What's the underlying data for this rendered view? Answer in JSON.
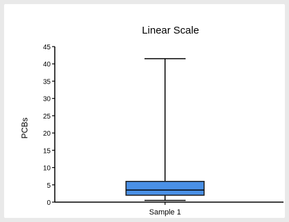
{
  "chart_data": {
    "type": "boxplot",
    "title": "Linear Scale",
    "xlabel": "",
    "ylabel": "PCBs",
    "ylim": [
      0,
      45
    ],
    "yticks": [
      0,
      5,
      10,
      15,
      20,
      25,
      30,
      35,
      40,
      45
    ],
    "grid": false,
    "legend": "none",
    "categories": [
      "Sample 1"
    ],
    "series": [
      {
        "values": [
          {
            "min": 0.5,
            "q1": 2,
            "median": 3.5,
            "q3": 6,
            "max": 41.5
          }
        ],
        "color": "#4a90e6"
      }
    ]
  }
}
